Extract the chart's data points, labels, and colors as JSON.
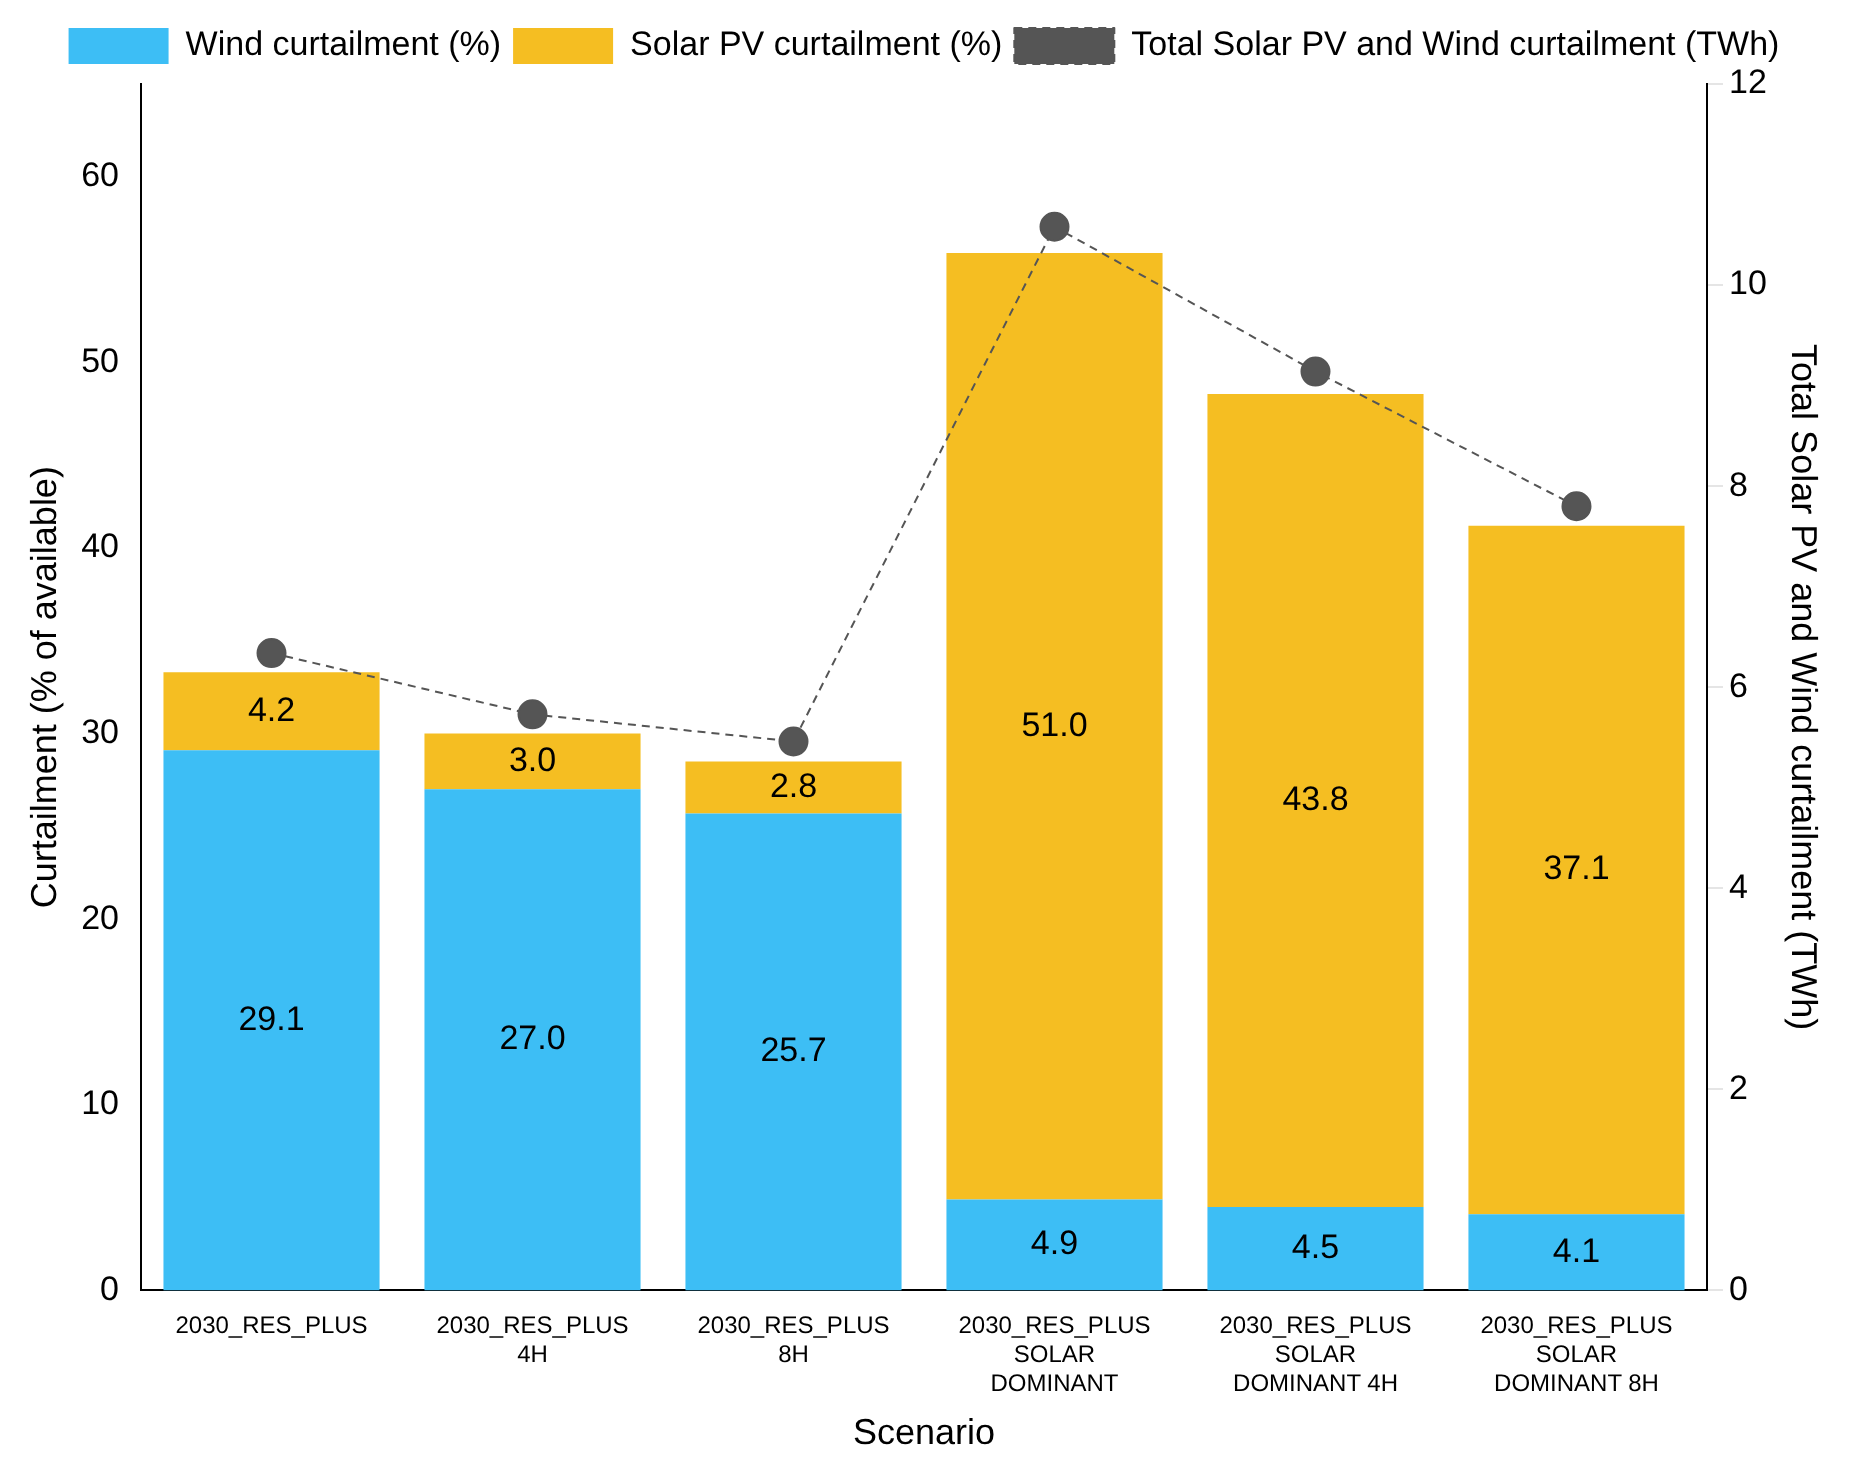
{
  "chart_data": {
    "type": "bar",
    "stacked": true,
    "xlabel": "Scenario",
    "ylabel": "Curtailment (% of available)",
    "y2label": "Total Solar PV and Wind curtailment (TWh)",
    "categories": [
      "2030_RES_PLUS",
      "2030_RES_PLUS\n4H",
      "2030_RES_PLUS\n8H",
      "2030_RES_PLUS\nSOLAR\nDOMINANT",
      "2030_RES_PLUS\nSOLAR\nDOMINANT 4H",
      "2030_RES_PLUS\nSOLAR\nDOMINANT 8H"
    ],
    "series": [
      {
        "name": "Wind curtailment (%)",
        "color": "#3dbef5",
        "values": [
          29.1,
          27.0,
          25.7,
          4.9,
          4.5,
          4.1
        ],
        "value_labels": [
          "29.1",
          "27.0",
          "25.7",
          "4.9",
          "4.5",
          "4.1"
        ]
      },
      {
        "name": "Solar PV curtailment (%)",
        "color": "#f5be22",
        "values": [
          4.2,
          3.0,
          2.8,
          51.0,
          43.8,
          37.1
        ],
        "value_labels": [
          "4.2",
          "3.0",
          "2.8",
          "51.0",
          "43.8",
          "37.1"
        ]
      },
      {
        "name": "Total Solar PV and Wind curtailment (TWh)",
        "type": "line",
        "axis": "y2",
        "color": "#555555",
        "marker": "circle",
        "line_style": "dashed",
        "values": [
          6.34,
          5.73,
          5.46,
          10.58,
          9.14,
          7.8
        ]
      }
    ],
    "ylim": [
      0,
      65
    ],
    "yticks": [
      0,
      10,
      20,
      30,
      40,
      50,
      60
    ],
    "y2lim": [
      0,
      12
    ],
    "y2ticks": [
      0,
      2,
      4,
      6,
      8,
      10,
      12
    ],
    "grid": false,
    "legend": "top"
  }
}
